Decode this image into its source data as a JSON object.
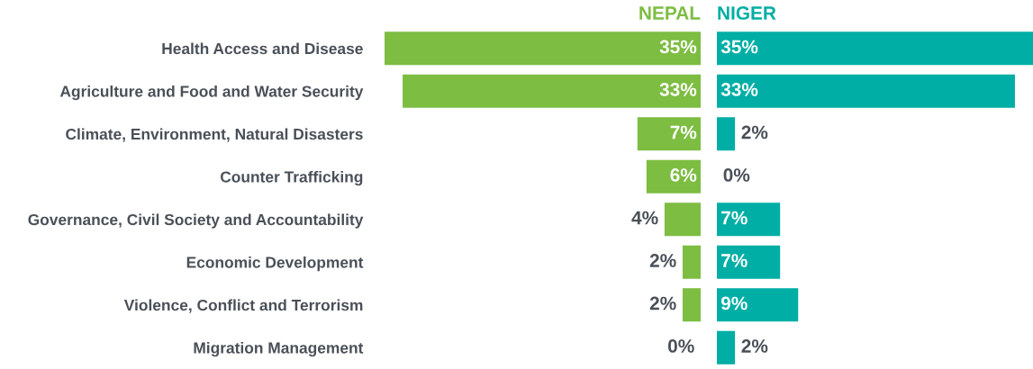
{
  "chart_data": [
    {
      "type": "bar",
      "orientation": "horizontal",
      "title": "NEPAL",
      "color": "#7dbd42",
      "tick_labels": "y",
      "xlim": [
        35,
        0
      ],
      "categories": [
        "Health Access and Disease",
        "Agriculture and Food and Water Security",
        "Climate, Environment, Natural Disasters",
        "Counter Trafficking",
        "Governance, Civil Society and Accountability",
        "Economic Development",
        "Violence, Conflict and Terrorism",
        "Migration Management"
      ],
      "values": [
        35,
        33,
        7,
        6,
        4,
        2,
        2,
        0
      ],
      "value_labels": [
        "35%",
        "33%",
        "7%",
        "6%",
        "4%",
        "2%",
        "2%",
        "0%"
      ]
    },
    {
      "type": "bar",
      "orientation": "horizontal",
      "title": "NIGER",
      "color": "#00aea5",
      "tick_labels": false,
      "xlim": [
        0,
        35
      ],
      "categories": [
        null,
        null,
        null,
        null,
        null,
        null,
        null,
        null
      ],
      "values": [
        35,
        33,
        2,
        0,
        7,
        7,
        9,
        2
      ],
      "value_labels": [
        "35%",
        "33%",
        "2%",
        "0%",
        "7%",
        "7%",
        "9%",
        "2%"
      ]
    }
  ]
}
